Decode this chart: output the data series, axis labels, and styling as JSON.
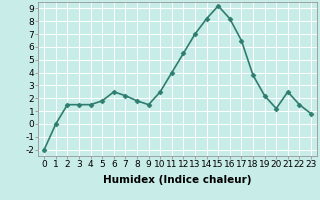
{
  "x": [
    0,
    1,
    2,
    3,
    4,
    5,
    6,
    7,
    8,
    9,
    10,
    11,
    12,
    13,
    14,
    15,
    16,
    17,
    18,
    19,
    20,
    21,
    22,
    23
  ],
  "y": [
    -2,
    0,
    1.5,
    1.5,
    1.5,
    1.8,
    2.5,
    2.2,
    1.8,
    1.5,
    2.5,
    4.0,
    5.5,
    7.0,
    8.2,
    9.2,
    8.2,
    6.5,
    3.8,
    2.2,
    1.2,
    2.5,
    1.5,
    0.8
  ],
  "line_color": "#2e7d6e",
  "marker": "D",
  "marker_size": 2.5,
  "line_width": 1.2,
  "bg_color": "#c8ece8",
  "grid_color": "#ffffff",
  "xlabel": "Humidex (Indice chaleur)",
  "ylim": [
    -2.5,
    9.5
  ],
  "xlim": [
    -0.5,
    23.5
  ],
  "yticks": [
    -2,
    -1,
    0,
    1,
    2,
    3,
    4,
    5,
    6,
    7,
    8,
    9
  ],
  "xticks": [
    0,
    1,
    2,
    3,
    4,
    5,
    6,
    7,
    8,
    9,
    10,
    11,
    12,
    13,
    14,
    15,
    16,
    17,
    18,
    19,
    20,
    21,
    22,
    23
  ],
  "xlabel_fontsize": 7.5,
  "tick_fontsize": 6.5
}
